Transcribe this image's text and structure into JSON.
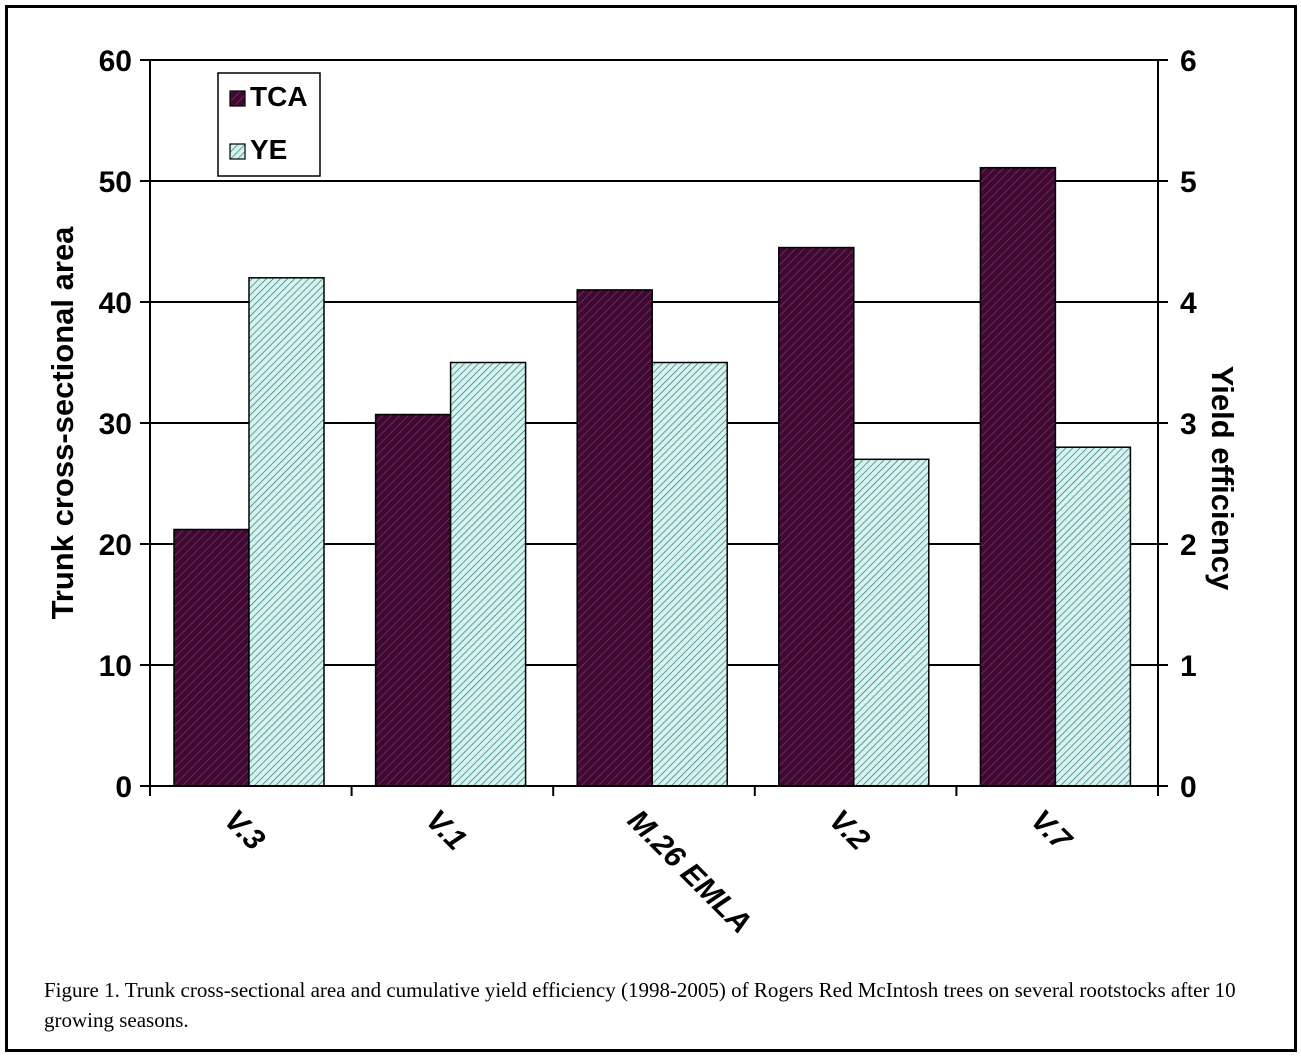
{
  "chart_data": {
    "type": "bar",
    "categories": [
      "V.3",
      "V.1",
      "M.26 EMLA",
      "V.2",
      "V.7"
    ],
    "series": [
      {
        "name": "TCA",
        "axis": "left",
        "color": "#3a0a2e",
        "values": [
          21.2,
          30.7,
          41.0,
          44.5,
          51.1
        ]
      },
      {
        "name": "YE",
        "axis": "right",
        "color": "#a8dcd8",
        "values": [
          4.2,
          3.5,
          3.5,
          2.7,
          2.8
        ]
      }
    ],
    "ylabel": "Trunk cross-sectional area",
    "ylabel_right": "Yield efficiency",
    "ylim": [
      0,
      60
    ],
    "ylim_right": [
      0,
      6
    ],
    "yticks": [
      "0",
      "10",
      "20",
      "30",
      "40",
      "50",
      "60"
    ],
    "yticks_right": [
      "0",
      "1",
      "2",
      "3",
      "4",
      "5",
      "6"
    ],
    "grid": true,
    "legend_position": "top-left",
    "legend": [
      {
        "name": "TCA",
        "pattern": "dark-hatch"
      },
      {
        "name": "YE",
        "pattern": "light-hatch"
      }
    ]
  },
  "caption": "Figure 1.  Trunk cross-sectional area and cumulative yield efficiency (1998-2005) of Rogers Red McIntosh trees on several rootstocks after 10 growing seasons."
}
